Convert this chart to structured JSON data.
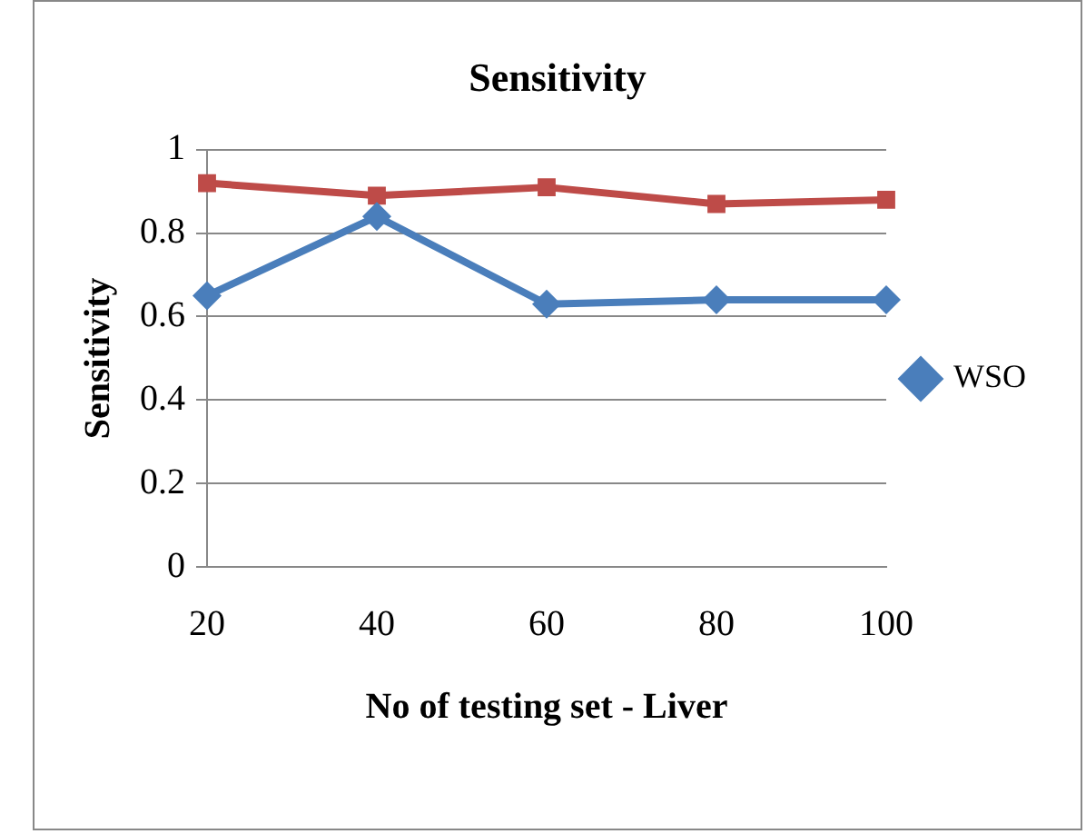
{
  "chart_data": {
    "type": "line",
    "title": "Sensitivity",
    "xlabel": "No of testing set - Liver",
    "ylabel": "Sensitivity",
    "categories": [
      "20",
      "40",
      "60",
      "80",
      "100"
    ],
    "series": [
      {
        "name": "WSO",
        "color": "#4a7ebb",
        "marker": "diamond",
        "values": [
          0.65,
          0.84,
          0.63,
          0.64,
          0.64
        ]
      },
      {
        "color": "#be4b48",
        "marker": "square",
        "values": [
          0.92,
          0.89,
          0.91,
          0.87,
          0.88
        ]
      }
    ],
    "ylim": [
      0,
      1
    ],
    "yticks": [
      0,
      0.2,
      0.4,
      0.6,
      0.8,
      1
    ],
    "grid": "y",
    "legend": "right",
    "line_style": "solid"
  }
}
